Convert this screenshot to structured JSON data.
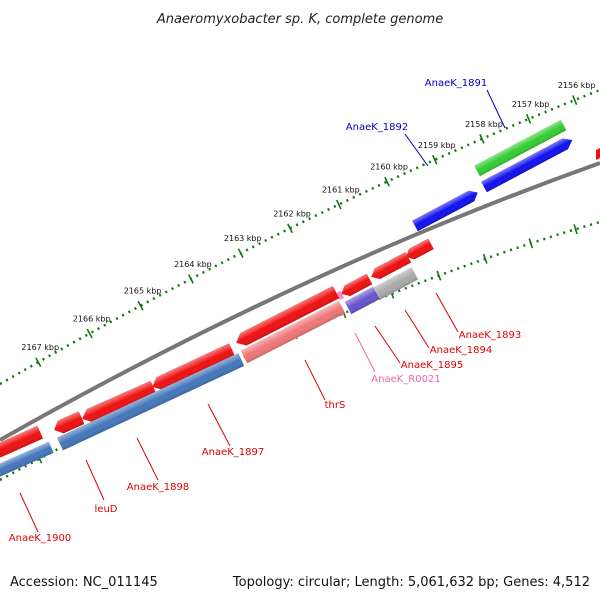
{
  "title": "Anaeromyxobacter sp. K, complete genome",
  "accession": "Accession: NC_011145",
  "topology": "Topology: circular; Length: 5,061,632 bp; Genes: 4,512",
  "colors": {
    "backbone": "#777777",
    "ruler": "#117711",
    "label_forward": "#0000bb",
    "label_reverse": "#dd0000",
    "label_rna": "#ee66aa"
  },
  "ruler": {
    "ticks": [
      {
        "label": "2156 kbp"
      },
      {
        "label": "2157 kbp"
      },
      {
        "label": "2158 kbp"
      },
      {
        "label": "2159 kbp"
      },
      {
        "label": "2160 kbp"
      },
      {
        "label": "2161 kbp"
      },
      {
        "label": "2162 kbp"
      },
      {
        "label": "2163 kbp"
      },
      {
        "label": "2164 kbp"
      },
      {
        "label": "2165 kbp"
      },
      {
        "label": "2166 kbp"
      },
      {
        "label": "2167 kbp"
      }
    ]
  },
  "gene_labels": [
    {
      "text": "AnaeK_1891",
      "strand": "forward"
    },
    {
      "text": "AnaeK_1892",
      "strand": "forward"
    },
    {
      "text": "AnaeK_1893",
      "strand": "reverse"
    },
    {
      "text": "AnaeK_1894",
      "strand": "reverse"
    },
    {
      "text": "AnaeK_1895",
      "strand": "reverse"
    },
    {
      "text": "AnaeK_R0021",
      "strand": "rna"
    },
    {
      "text": "thrS",
      "strand": "reverse"
    },
    {
      "text": "AnaeK_1897",
      "strand": "reverse"
    },
    {
      "text": "AnaeK_1898",
      "strand": "reverse"
    },
    {
      "text": "leuD",
      "strand": "reverse"
    },
    {
      "text": "AnaeK_1900",
      "strand": "reverse"
    }
  ]
}
